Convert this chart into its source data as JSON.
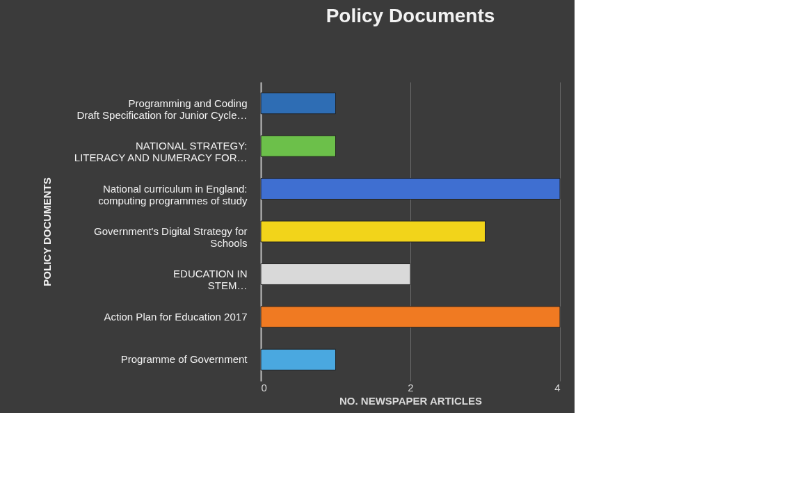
{
  "chart_data": {
    "type": "bar",
    "orientation": "horizontal",
    "title": "Policy Documents",
    "xlabel": "NO. NEWSPAPER ARTICLES",
    "ylabel": "POLICY DOCUMENTS",
    "categories": [
      "Programming and Coding\nDraft Specification for Junior Cycle…",
      "NATIONAL STRATEGY:\nLITERACY AND NUMERACY FOR…",
      "National curriculum in England:\ncomputing programmes of study",
      "Government's Digital Strategy for\nSchools",
      "EDUCATION IN\nSTEM…",
      "Action Plan for Education 2017",
      "Programme of Government"
    ],
    "values": [
      1,
      1,
      4,
      3,
      2,
      4,
      1
    ],
    "colors": [
      "#2e6db4",
      "#6cc04a",
      "#3f6fd1",
      "#f2d41a",
      "#d9d9d9",
      "#f07a22",
      "#4aa8e0"
    ],
    "xlim": [
      0,
      4
    ],
    "xticks": [
      0,
      2,
      4
    ],
    "grid": "x"
  }
}
